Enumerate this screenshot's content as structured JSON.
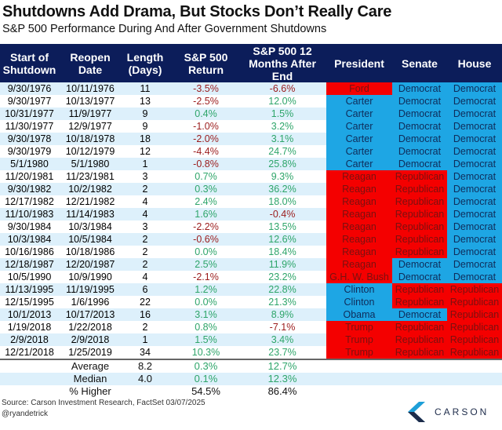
{
  "title": "Shutdowns Add Drama, But Stocks Don’t Really Care",
  "subtitle": "S&P 500 Performance During And After Government Shutdowns",
  "columns": [
    "Start of Shutdown",
    "Reopen Date",
    "Length (Days)",
    "S&P 500 Return",
    "S&P 500 12 Months After End",
    "President",
    "Senate",
    "House"
  ],
  "colors": {
    "header": "#0c1d5a",
    "democrat": "#1ea6e4",
    "republican": "#f40000",
    "positive": "#2ea56a",
    "negative": "#9b1c1c",
    "stripe": "#ddf0fb"
  },
  "rows": [
    [
      "9/30/1976",
      "10/11/1976",
      "11",
      "-3.5%",
      "-6.6%",
      "Ford",
      "Democrat",
      "Democrat",
      "Republican"
    ],
    [
      "9/30/1977",
      "10/13/1977",
      "13",
      "-2.5%",
      "12.0%",
      "Carter",
      "Democrat",
      "Democrat",
      "Democrat"
    ],
    [
      "10/31/1977",
      "11/9/1977",
      "9",
      "0.4%",
      "1.5%",
      "Carter",
      "Democrat",
      "Democrat",
      "Democrat"
    ],
    [
      "11/30/1977",
      "12/9/1977",
      "9",
      "-1.0%",
      "3.2%",
      "Carter",
      "Democrat",
      "Democrat",
      "Democrat"
    ],
    [
      "9/30/1978",
      "10/18/1978",
      "18",
      "-2.0%",
      "3.1%",
      "Carter",
      "Democrat",
      "Democrat",
      "Democrat"
    ],
    [
      "9/30/1979",
      "10/12/1979",
      "12",
      "-4.4%",
      "24.7%",
      "Carter",
      "Democrat",
      "Democrat",
      "Democrat"
    ],
    [
      "5/1/1980",
      "5/1/1980",
      "1",
      "-0.8%",
      "25.8%",
      "Carter",
      "Democrat",
      "Democrat",
      "Democrat"
    ],
    [
      "11/20/1981",
      "11/23/1981",
      "3",
      "0.7%",
      "9.3%",
      "Reagan",
      "Republican",
      "Democrat",
      "Republican"
    ],
    [
      "9/30/1982",
      "10/2/1982",
      "2",
      "0.3%",
      "36.2%",
      "Reagan",
      "Republican",
      "Democrat",
      "Republican"
    ],
    [
      "12/17/1982",
      "12/21/1982",
      "4",
      "2.4%",
      "18.0%",
      "Reagan",
      "Republican",
      "Democrat",
      "Republican"
    ],
    [
      "11/10/1983",
      "11/14/1983",
      "4",
      "1.6%",
      "-0.4%",
      "Reagan",
      "Republican",
      "Democrat",
      "Republican"
    ],
    [
      "9/30/1984",
      "10/3/1984",
      "3",
      "-2.2%",
      "13.5%",
      "Reagan",
      "Republican",
      "Democrat",
      "Republican"
    ],
    [
      "10/3/1984",
      "10/5/1984",
      "2",
      "-0.6%",
      "12.6%",
      "Reagan",
      "Republican",
      "Democrat",
      "Republican"
    ],
    [
      "10/16/1986",
      "10/18/1986",
      "2",
      "0.0%",
      "18.4%",
      "Reagan",
      "Republican",
      "Democrat",
      "Republican"
    ],
    [
      "12/18/1987",
      "12/20/1987",
      "2",
      "2.5%",
      "11.9%",
      "Reagan",
      "Democrat",
      "Democrat",
      "Republican"
    ],
    [
      "10/5/1990",
      "10/9/1990",
      "4",
      "-2.1%",
      "23.2%",
      "G.H. W. Bush",
      "Democrat",
      "Democrat",
      "Republican"
    ],
    [
      "11/13/1995",
      "11/19/1995",
      "6",
      "1.2%",
      "22.8%",
      "Clinton",
      "Republican",
      "Republican",
      "Democrat"
    ],
    [
      "12/15/1995",
      "1/6/1996",
      "22",
      "0.0%",
      "21.3%",
      "Clinton",
      "Republican",
      "Republican",
      "Democrat"
    ],
    [
      "10/1/2013",
      "10/17/2013",
      "16",
      "3.1%",
      "8.9%",
      "Obama",
      "Democrat",
      "Republican",
      "Democrat"
    ],
    [
      "1/19/2018",
      "1/22/2018",
      "2",
      "0.8%",
      "-7.1%",
      "Trump",
      "Republican",
      "Republican",
      "Republican"
    ],
    [
      "2/9/2018",
      "2/9/2018",
      "1",
      "1.5%",
      "3.4%",
      "Trump",
      "Republican",
      "Republican",
      "Republican"
    ],
    [
      "12/21/2018",
      "1/25/2019",
      "34",
      "10.3%",
      "23.7%",
      "Trump",
      "Republican",
      "Republican",
      "Republican"
    ]
  ],
  "summary": [
    {
      "label": "Average",
      "length": "8.2",
      "ret": "0.3%",
      "after": "12.7%"
    },
    {
      "label": "Median",
      "length": "4.0",
      "ret": "0.1%",
      "after": "12.3%"
    },
    {
      "label": "% Higher",
      "length": "",
      "ret": "54.5%",
      "after": "86.4%"
    }
  ],
  "source": "Source: Carson Investment Research, FactSet 03/07/2025",
  "handle": "@ryandetrick",
  "logo": "CARSON"
}
